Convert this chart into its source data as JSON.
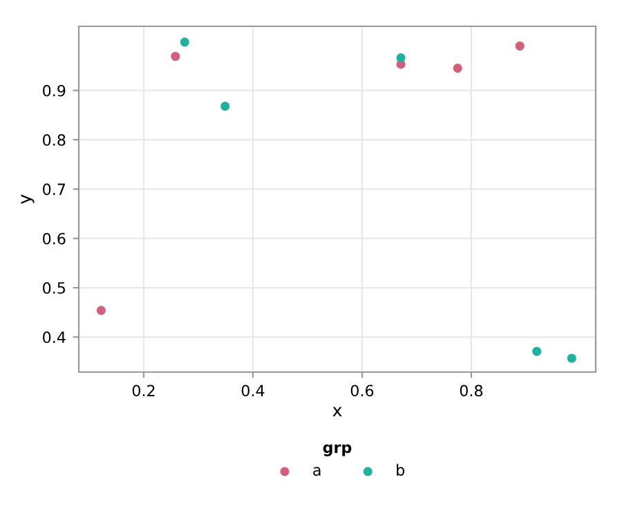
{
  "chart_data": {
    "type": "scatter",
    "xlabel": "x",
    "ylabel": "y",
    "legend_title": "grp",
    "xlim": [
      0.081,
      1.028
    ],
    "ylim": [
      0.329,
      1.03
    ],
    "xticks": [
      0.2,
      0.4,
      0.6,
      0.8
    ],
    "yticks": [
      0.4,
      0.5,
      0.6,
      0.7,
      0.8,
      0.9
    ],
    "grid": true,
    "legend": "bottom",
    "marker": "circle",
    "series": [
      {
        "name": "a",
        "color": "#d1617a",
        "x": [
          0.122,
          0.258,
          0.671,
          0.775,
          0.889
        ],
        "values": [
          0.454,
          0.969,
          0.953,
          0.945,
          0.99
        ]
      },
      {
        "name": "b",
        "color": "#1fb29e",
        "x": [
          0.275,
          0.349,
          0.671,
          0.92,
          0.984
        ],
        "values": [
          0.998,
          0.868,
          0.966,
          0.371,
          0.357
        ]
      }
    ]
  }
}
